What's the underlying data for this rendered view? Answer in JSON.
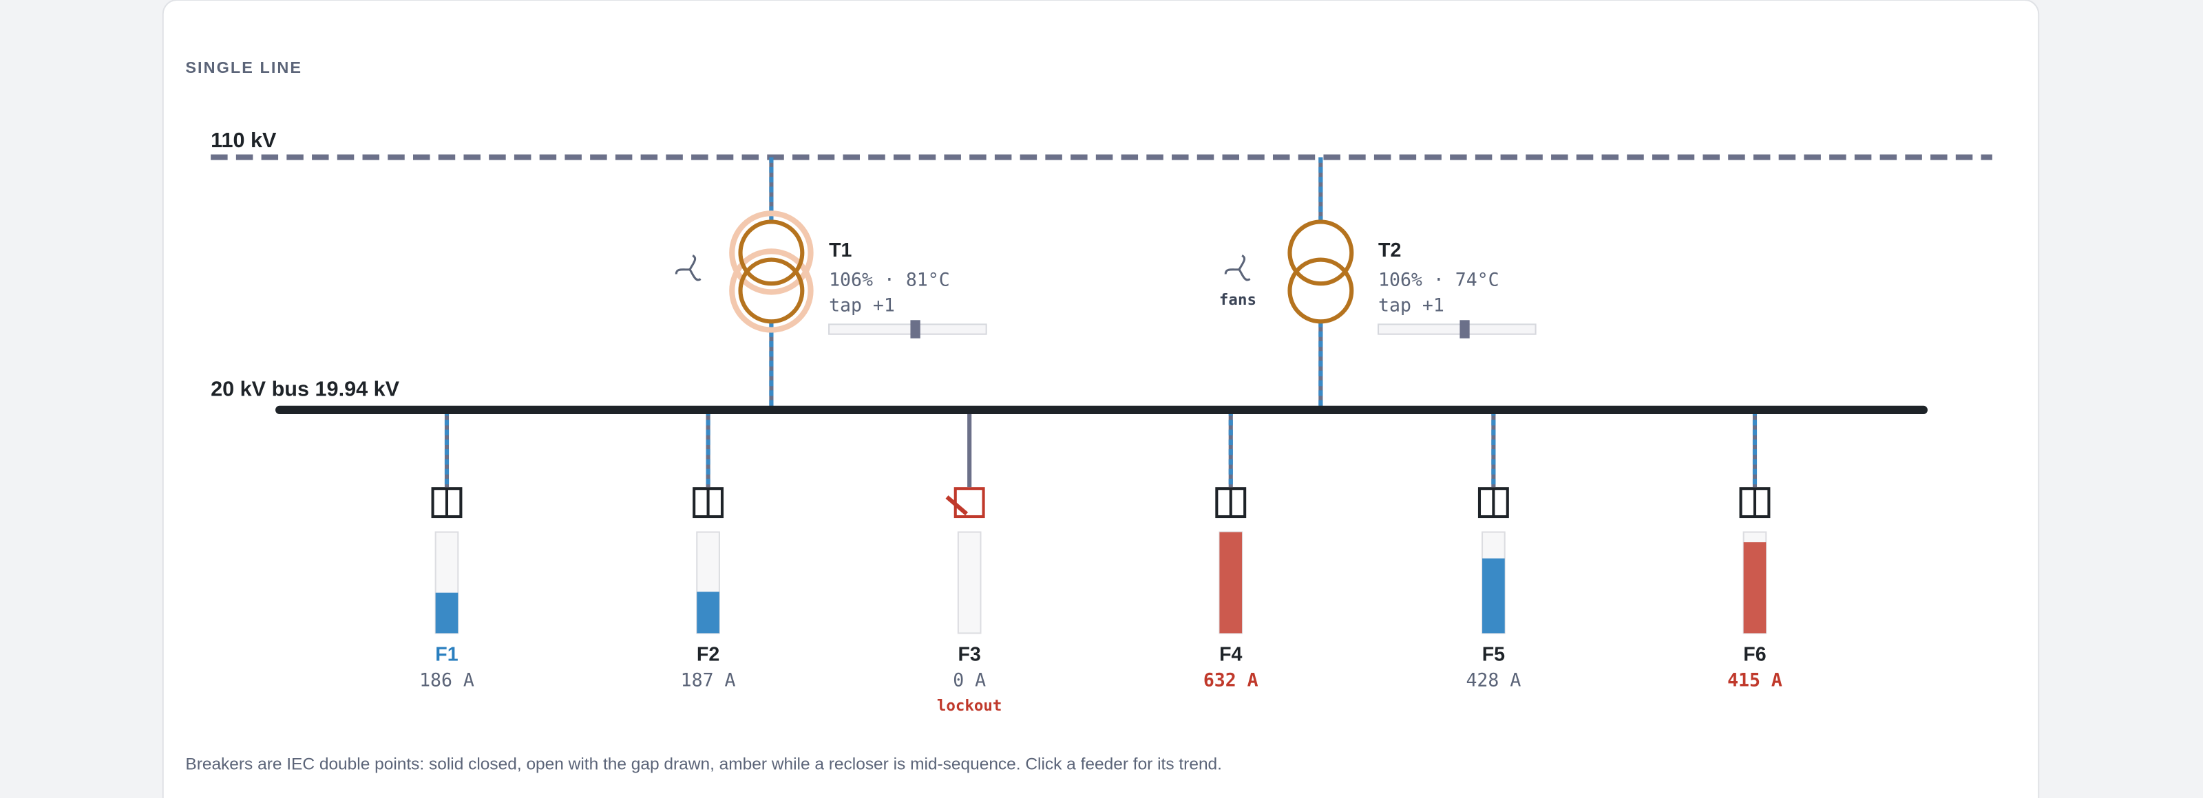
{
  "panel": {
    "title": "SINGLE LINE",
    "footer": "Breakers are IEC double points: solid closed, open with the gap drawn, amber while a recloser is mid-sequence. Click a feeder for its trend."
  },
  "hv_bus": {
    "label": "110 kV"
  },
  "mv_bus": {
    "label": "20 kV bus 19.94 kV"
  },
  "transformers": [
    {
      "name": "T1",
      "load_temp": "106% · 81°C",
      "tap": "tap +1",
      "halo": true
    },
    {
      "name": "T2",
      "load_temp": "106% · 74°C",
      "tap": "tap +1",
      "fan_label": "fans",
      "halo": false
    }
  ],
  "feeders": [
    {
      "name": "F1",
      "current": "186 A",
      "load": 40,
      "color": "#3a8ac6",
      "name_color": "#2a7fbf",
      "current_color": "#5b6478"
    },
    {
      "name": "F2",
      "current": "187 A",
      "load": 41,
      "color": "#3a8ac6",
      "name_color": "#1e2328",
      "current_color": "#5b6478"
    },
    {
      "name": "F3",
      "current": "0 A",
      "load": 0,
      "color": "#3a8ac6",
      "name_color": "#1e2328",
      "current_color": "#5b6478",
      "status": "lockout"
    },
    {
      "name": "F4",
      "current": "632 A",
      "load": 100,
      "color": "#cc5a4e",
      "name_color": "#1e2328",
      "current_color": "#c0392b"
    },
    {
      "name": "F5",
      "current": "428 A",
      "load": 74,
      "color": "#3a8ac6",
      "name_color": "#1e2328",
      "current_color": "#5b6478"
    },
    {
      "name": "F6",
      "current": "415 A",
      "load": 90,
      "color": "#cc5a4e",
      "name_color": "#1e2328",
      "current_color": "#c0392b"
    }
  ]
}
